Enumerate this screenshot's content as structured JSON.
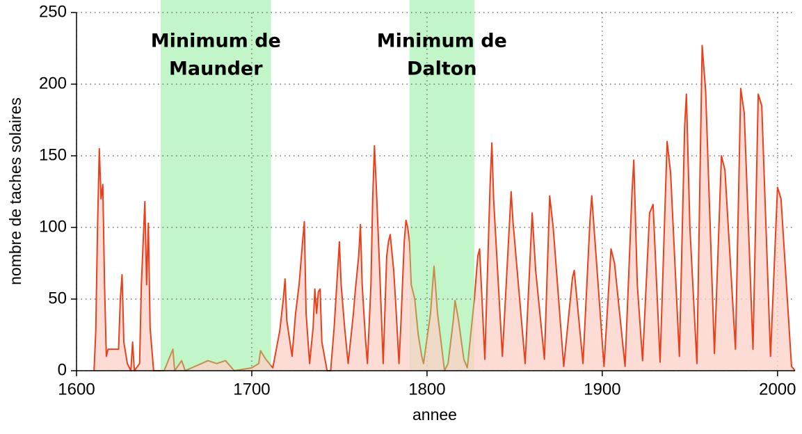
{
  "chart_data": {
    "type": "area",
    "xlabel": "annee",
    "ylabel": "nombre de taches solaires",
    "xlim": [
      1600,
      2010
    ],
    "ylim": [
      0,
      250
    ],
    "xticks": [
      1600,
      1700,
      1800,
      1900,
      2000
    ],
    "yticks": [
      0,
      50,
      100,
      150,
      200,
      250
    ],
    "grid": true,
    "color": "#e8401c",
    "fill_color": "#fdd0c8",
    "band_color": "#c2f5c8",
    "band_line_color": "#c0904c",
    "bands": [
      {
        "start": 1648,
        "end": 1711,
        "label": [
          "Minimum de",
          "Maunder"
        ]
      },
      {
        "start": 1790,
        "end": 1827,
        "label": [
          "Minimum de",
          "Dalton"
        ]
      }
    ],
    "x": [
      1610,
      1611,
      1612,
      1613,
      1614,
      1615,
      1616,
      1617,
      1618,
      1620,
      1624,
      1625,
      1626,
      1627,
      1629,
      1631,
      1632,
      1633,
      1636,
      1637,
      1639,
      1640,
      1641,
      1642,
      1644,
      1650,
      1655,
      1656,
      1660,
      1662,
      1675,
      1680,
      1685,
      1690,
      1700,
      1704,
      1705,
      1708,
      1712,
      1714,
      1716,
      1718,
      1719,
      1720,
      1723,
      1725,
      1727,
      1729,
      1730,
      1731,
      1733,
      1735,
      1736,
      1737,
      1738,
      1739,
      1740,
      1743,
      1745,
      1747,
      1749,
      1750,
      1751,
      1753,
      1755,
      1758,
      1759,
      1761,
      1762,
      1763,
      1765,
      1766,
      1768,
      1769,
      1770,
      1771,
      1773,
      1775,
      1777,
      1778,
      1779,
      1781,
      1782,
      1784,
      1785,
      1787,
      1788,
      1789,
      1790,
      1791,
      1793,
      1795,
      1797,
      1798,
      1802,
      1804,
      1806,
      1810,
      1812,
      1815,
      1816,
      1818,
      1821,
      1823,
      1827,
      1829,
      1830,
      1833,
      1836,
      1837,
      1838,
      1843,
      1848,
      1849,
      1856,
      1860,
      1862,
      1867,
      1870,
      1872,
      1878,
      1883,
      1884,
      1889,
      1893,
      1894,
      1901,
      1905,
      1907,
      1913,
      1917,
      1918,
      1920,
      1923,
      1927,
      1929,
      1933,
      1937,
      1939,
      1944,
      1947,
      1948,
      1950,
      1954,
      1957,
      1959,
      1964,
      1968,
      1970,
      1976,
      1979,
      1981,
      1986,
      1989,
      1991,
      1996,
      2000,
      2002,
      2008,
      2010
    ],
    "values": [
      0,
      28,
      100,
      155,
      120,
      130,
      60,
      10,
      15,
      15,
      15,
      50,
      67,
      20,
      5,
      0,
      20,
      0,
      5,
      60,
      118,
      60,
      103,
      30,
      0,
      0,
      15,
      0,
      7,
      0,
      7,
      5,
      7,
      0,
      2,
      5,
      14,
      8,
      2,
      15,
      28,
      50,
      64,
      35,
      10,
      40,
      60,
      90,
      104,
      40,
      5,
      30,
      57,
      40,
      55,
      57,
      20,
      0,
      0,
      30,
      70,
      90,
      60,
      30,
      5,
      40,
      55,
      80,
      102,
      60,
      20,
      5,
      60,
      120,
      157,
      130,
      70,
      5,
      80,
      90,
      95,
      70,
      50,
      5,
      30,
      90,
      105,
      100,
      90,
      60,
      50,
      25,
      10,
      5,
      40,
      73,
      40,
      0,
      5,
      35,
      49,
      35,
      8,
      2,
      50,
      80,
      85,
      8,
      130,
      159,
      120,
      10,
      125,
      105,
      5,
      110,
      70,
      8,
      122,
      100,
      3,
      65,
      70,
      5,
      105,
      122,
      3,
      85,
      75,
      3,
      125,
      147,
      60,
      7,
      110,
      116,
      6,
      160,
      138,
      10,
      170,
      193,
      100,
      5,
      227,
      195,
      12,
      150,
      140,
      15,
      197,
      180,
      15,
      193,
      185,
      10,
      128,
      120,
      3,
      0
    ]
  }
}
